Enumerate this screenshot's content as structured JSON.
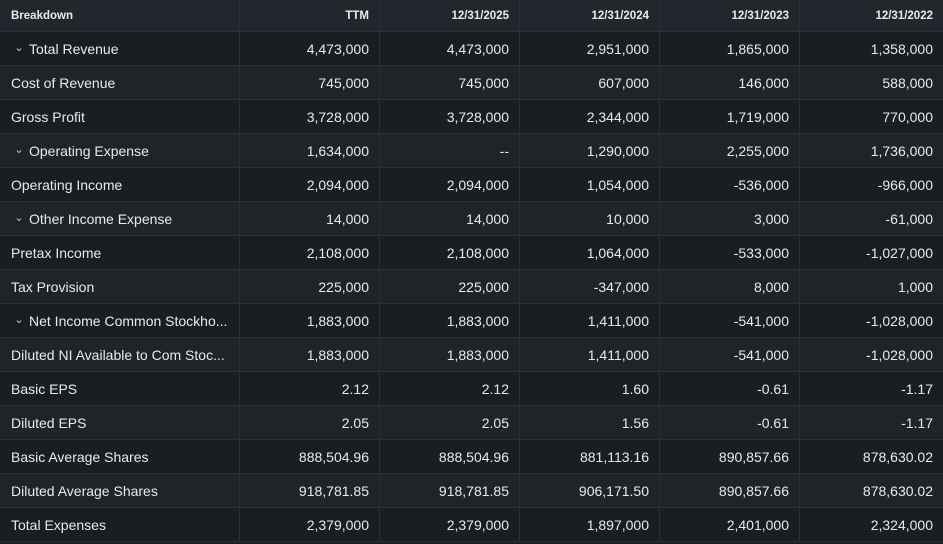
{
  "headers": [
    "Breakdown",
    "TTM",
    "12/31/2025",
    "12/31/2024",
    "12/31/2023",
    "12/31/2022"
  ],
  "rows": [
    {
      "label": "Total Revenue",
      "expandable": true,
      "values": [
        "4,473,000",
        "4,473,000",
        "2,951,000",
        "1,865,000",
        "1,358,000"
      ]
    },
    {
      "label": "Cost of Revenue",
      "expandable": false,
      "values": [
        "745,000",
        "745,000",
        "607,000",
        "146,000",
        "588,000"
      ]
    },
    {
      "label": "Gross Profit",
      "expandable": false,
      "values": [
        "3,728,000",
        "3,728,000",
        "2,344,000",
        "1,719,000",
        "770,000"
      ]
    },
    {
      "label": "Operating Expense",
      "expandable": true,
      "values": [
        "1,634,000",
        "--",
        "1,290,000",
        "2,255,000",
        "1,736,000"
      ]
    },
    {
      "label": "Operating Income",
      "expandable": false,
      "values": [
        "2,094,000",
        "2,094,000",
        "1,054,000",
        "-536,000",
        "-966,000"
      ]
    },
    {
      "label": "Other Income Expense",
      "expandable": true,
      "values": [
        "14,000",
        "14,000",
        "10,000",
        "3,000",
        "-61,000"
      ]
    },
    {
      "label": "Pretax Income",
      "expandable": false,
      "values": [
        "2,108,000",
        "2,108,000",
        "1,064,000",
        "-533,000",
        "-1,027,000"
      ]
    },
    {
      "label": "Tax Provision",
      "expandable": false,
      "values": [
        "225,000",
        "225,000",
        "-347,000",
        "8,000",
        "1,000"
      ]
    },
    {
      "label": "Net Income Common Stockho...",
      "expandable": true,
      "values": [
        "1,883,000",
        "1,883,000",
        "1,411,000",
        "-541,000",
        "-1,028,000"
      ]
    },
    {
      "label": "Diluted NI Available to Com Stoc...",
      "expandable": false,
      "values": [
        "1,883,000",
        "1,883,000",
        "1,411,000",
        "-541,000",
        "-1,028,000"
      ]
    },
    {
      "label": "Basic EPS",
      "expandable": false,
      "values": [
        "2.12",
        "2.12",
        "1.60",
        "-0.61",
        "-1.17"
      ]
    },
    {
      "label": "Diluted EPS",
      "expandable": false,
      "values": [
        "2.05",
        "2.05",
        "1.56",
        "-0.61",
        "-1.17"
      ]
    },
    {
      "label": "Basic Average Shares",
      "expandable": false,
      "values": [
        "888,504.96",
        "888,504.96",
        "881,113.16",
        "890,857.66",
        "878,630.02"
      ]
    },
    {
      "label": "Diluted Average Shares",
      "expandable": false,
      "values": [
        "918,781.85",
        "918,781.85",
        "906,171.50",
        "890,857.66",
        "878,630.02"
      ]
    },
    {
      "label": "Total Expenses",
      "expandable": false,
      "values": [
        "2,379,000",
        "2,379,000",
        "1,897,000",
        "2,401,000",
        "2,324,000"
      ]
    }
  ],
  "icons": {
    "expand": "chevron-down-icon"
  },
  "colors": {
    "background": "#1c1f24",
    "header": "#23272d",
    "grid": "#2c3036",
    "text": "#e8eaed"
  }
}
